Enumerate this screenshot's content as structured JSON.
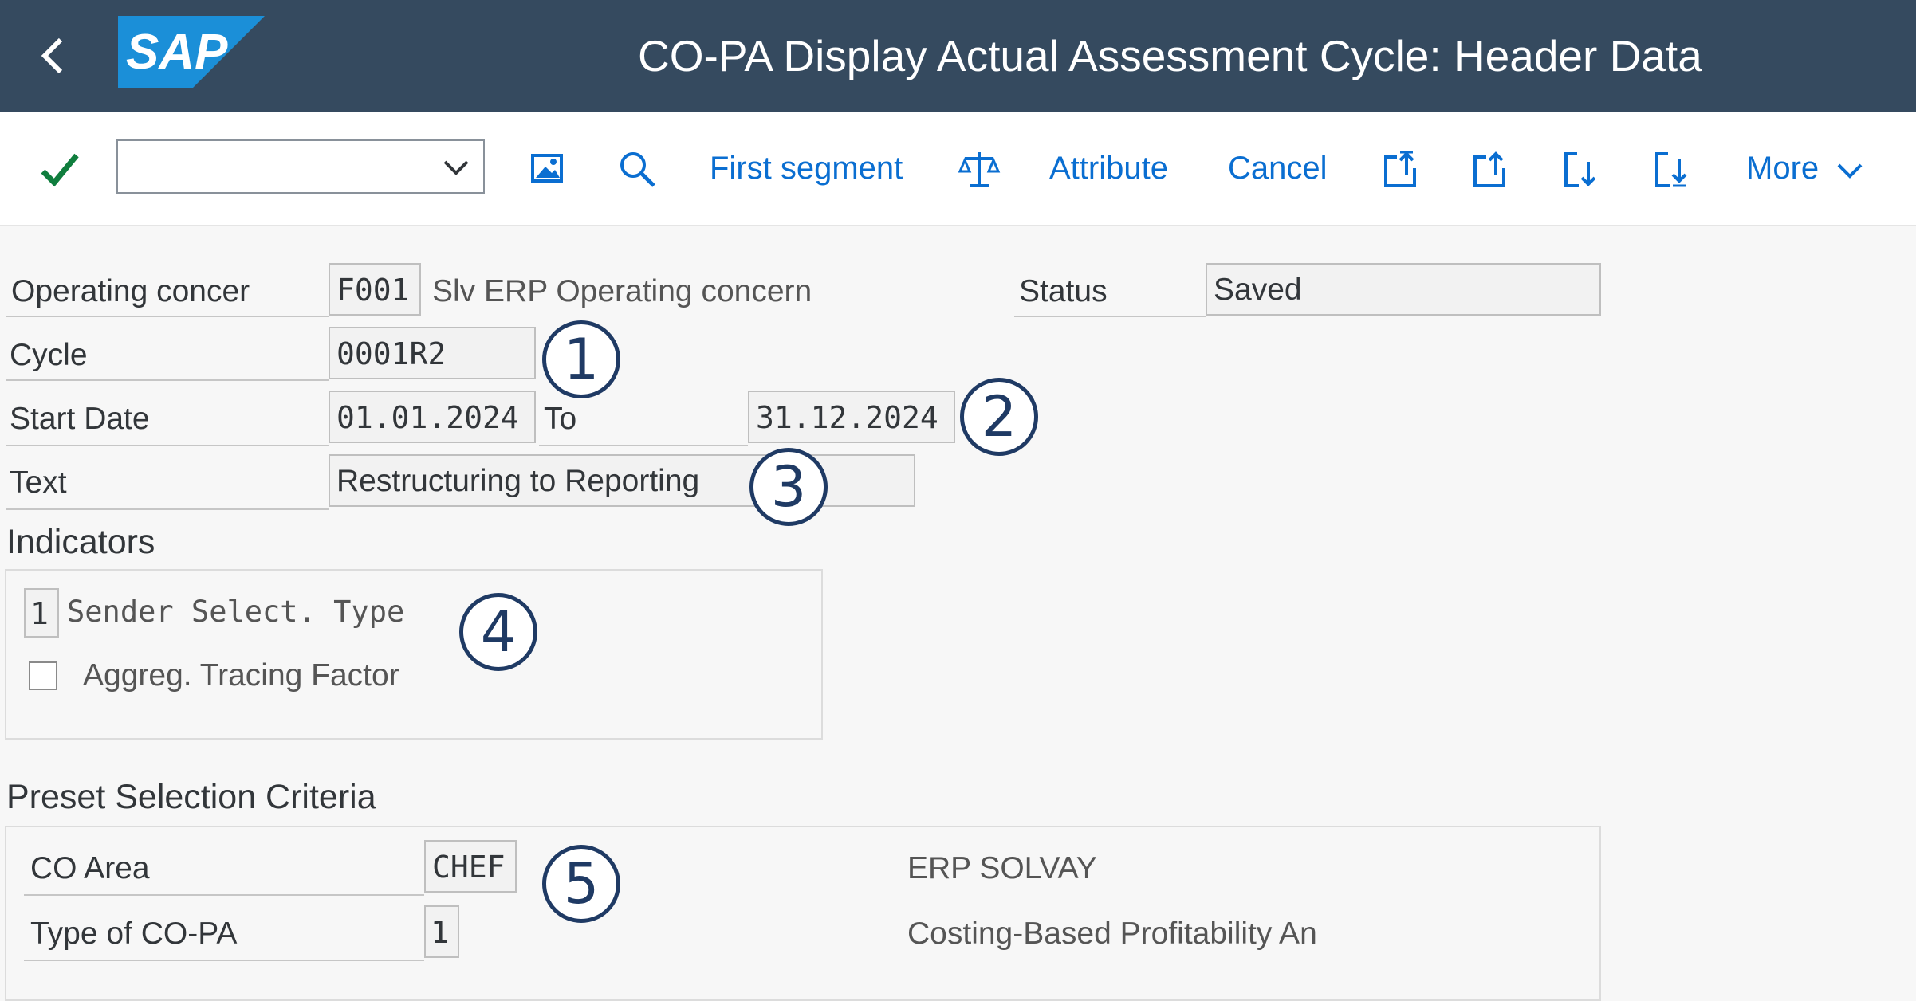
{
  "shell": {
    "back_glyph": "‹",
    "logo_text": "SAP",
    "title": "CO-PA Display Actual Assessment Cycle: Header Data"
  },
  "toolbar": {
    "command_field_value": "",
    "first_segment": "First segment",
    "attribute": "Attribute",
    "cancel": "Cancel",
    "more": "More"
  },
  "header": {
    "operating_concern": {
      "label": "Operating concer",
      "value": "F001",
      "description": "Slv ERP Operating concern"
    },
    "status": {
      "label": "Status",
      "value": "Saved"
    },
    "cycle": {
      "label": "Cycle",
      "value": "0001R2"
    },
    "start_date": {
      "label": "Start Date",
      "value": "01.01.2024"
    },
    "to_date": {
      "label": "To",
      "value": "31.12.2024"
    },
    "text": {
      "label": "Text",
      "value": "Restructuring to Reporting"
    }
  },
  "indicators": {
    "title": "Indicators",
    "sender_select_type": {
      "value": "1",
      "label": "Sender Select. Type"
    },
    "aggreg_tracing_factor": {
      "label": "Aggreg. Tracing Factor",
      "checked": false
    }
  },
  "preset": {
    "title": "Preset Selection Criteria",
    "co_area": {
      "label": "CO Area",
      "value": "CHEF",
      "description": "ERP SOLVAY"
    },
    "type_copa": {
      "label": "Type of CO-PA",
      "value": "1",
      "description": "Costing-Based Profitability An"
    }
  },
  "annotations": [
    "1",
    "2",
    "3",
    "4",
    "5"
  ],
  "colors": {
    "shell": "#354a5f",
    "link": "#0a6ed1",
    "check": "#107e3e",
    "badge": "#1f3a64"
  }
}
